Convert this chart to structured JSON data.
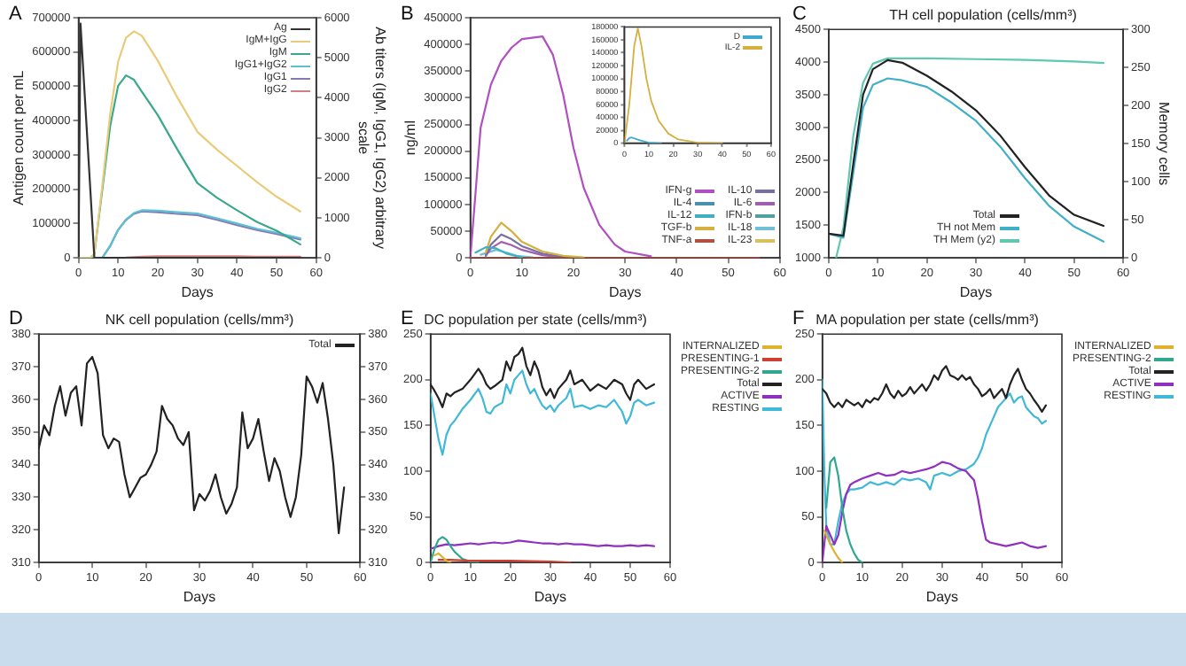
{
  "chart_data": [
    {
      "type": "line",
      "annotations": [
        "A"
      ],
      "xlabel": "Days",
      "ylabel": "Antigen count per mL",
      "y2label": "Ab titers (IgM, IgG1, IgG2) arbitrary scale",
      "xlim": [
        0,
        60
      ],
      "xticks": [
        0,
        10,
        20,
        30,
        40,
        50,
        60
      ],
      "ylim": [
        0,
        700000
      ],
      "yticks": [
        0,
        100000,
        200000,
        300000,
        400000,
        500000,
        600000,
        700000
      ],
      "y2lim": [
        0,
        6000
      ],
      "y2ticks": [
        0,
        1000,
        2000,
        3000,
        4000,
        5000,
        6000
      ],
      "legend": "top right",
      "series": [
        {
          "name": "Ag",
          "color": "#333333",
          "x": [
            0,
            0.5,
            4,
            56
          ],
          "values": [
            0,
            683000,
            0,
            0
          ]
        },
        {
          "name": "IgM+IgG",
          "color": "#e8cc7a",
          "axis": "y2",
          "x": [
            0,
            3,
            4,
            6,
            8,
            10,
            12,
            14,
            16,
            20,
            25,
            30,
            35,
            40,
            45,
            50,
            56
          ],
          "values": [
            0,
            0,
            100,
            1800,
            3600,
            4900,
            5500,
            5660,
            5550,
            4930,
            4000,
            3150,
            2700,
            2300,
            1900,
            1530,
            1160
          ]
        },
        {
          "name": "IgM",
          "color": "#3aa88a",
          "axis": "y2",
          "x": [
            0,
            3,
            4,
            6,
            8,
            10,
            12,
            14,
            16,
            20,
            25,
            30,
            35,
            40,
            45,
            50,
            56
          ],
          "values": [
            0,
            0,
            100,
            1700,
            3300,
            4300,
            4560,
            4450,
            4150,
            3570,
            2700,
            1870,
            1500,
            1190,
            900,
            680,
            340
          ]
        },
        {
          "name": "IgG1+IgG2",
          "color": "#5bc0d0",
          "axis": "y2",
          "x": [
            0,
            3,
            4,
            6,
            8,
            10,
            12,
            14,
            16,
            20,
            25,
            30,
            35,
            40,
            45,
            50,
            56
          ],
          "values": [
            0,
            0,
            0,
            0,
            300,
            700,
            960,
            1120,
            1190,
            1180,
            1140,
            1110,
            990,
            860,
            730,
            630,
            490
          ]
        },
        {
          "name": "IgG1",
          "color": "#8878b8",
          "axis": "y2",
          "x": [
            6,
            8,
            10,
            12,
            14,
            16,
            20,
            25,
            30,
            35,
            40,
            45,
            50,
            56
          ],
          "values": [
            0,
            300,
            700,
            950,
            1100,
            1160,
            1140,
            1100,
            1070,
            950,
            820,
            700,
            600,
            460
          ]
        },
        {
          "name": "IgG2",
          "color": "#d08080",
          "axis": "y2",
          "x": [
            12,
            14,
            16,
            20,
            25,
            30,
            35,
            40,
            45,
            50,
            56
          ],
          "values": [
            10,
            20,
            30,
            40,
            40,
            40,
            40,
            40,
            30,
            30,
            30
          ]
        }
      ]
    },
    {
      "type": "line",
      "annotations": [
        "B"
      ],
      "xlabel": "Days",
      "ylabel": "ng/ml",
      "xlim": [
        0,
        60
      ],
      "xticks": [
        0,
        10,
        20,
        30,
        40,
        50,
        60
      ],
      "ylim": [
        0,
        450000
      ],
      "yticks": [
        0,
        50000,
        100000,
        150000,
        200000,
        250000,
        300000,
        350000,
        400000,
        450000
      ],
      "legend": "bottom right",
      "series": [
        {
          "name": "IFN-g",
          "color": "#b04fc0",
          "x": [
            0,
            1,
            2,
            4,
            6,
            8,
            10,
            14,
            16,
            18,
            20,
            22,
            25,
            28,
            30,
            35
          ],
          "values": [
            0,
            120000,
            244000,
            325000,
            369000,
            394000,
            410000,
            415000,
            381000,
            306000,
            206000,
            131000,
            62000,
            25000,
            12000,
            3000
          ]
        },
        {
          "name": "IL-4",
          "color": "#4a8fb0"
        },
        {
          "name": "IL-12",
          "color": "#40b0c0",
          "x": [
            1,
            3,
            5,
            7,
            10
          ],
          "values": [
            10000,
            20000,
            18000,
            8000,
            1000
          ]
        },
        {
          "name": "TGF-b",
          "color": "#d4b040",
          "x": [
            3,
            4,
            6,
            8,
            10,
            14,
            18,
            22
          ],
          "values": [
            10000,
            40000,
            66000,
            50000,
            30000,
            12000,
            4000,
            1000
          ]
        },
        {
          "name": "TNF-a",
          "color": "#b05040",
          "x": [
            0,
            56
          ],
          "values": [
            0,
            0
          ]
        },
        {
          "name": "IL-10",
          "color": "#7a70a0",
          "x": [
            3,
            4,
            6,
            8,
            10,
            14,
            18
          ],
          "values": [
            5000,
            25000,
            44000,
            35000,
            22000,
            8000,
            2000
          ]
        },
        {
          "name": "IL-6",
          "color": "#a060b0",
          "x": [
            3,
            4,
            6,
            8,
            10,
            14,
            18
          ],
          "values": [
            4000,
            18000,
            30000,
            24000,
            15000,
            5000,
            1000
          ]
        },
        {
          "name": "IFN-b",
          "color": "#50a0a0"
        },
        {
          "name": "IL-18",
          "color": "#70c0d8",
          "x": [
            2,
            5,
            7,
            9,
            12
          ],
          "values": [
            6000,
            15000,
            10000,
            4000,
            1000
          ]
        },
        {
          "name": "IL-23",
          "color": "#d8c060"
        }
      ]
    },
    {
      "type": "line",
      "xlim": [
        0,
        60
      ],
      "xticks": [
        0,
        10,
        20,
        30,
        40,
        50,
        60
      ],
      "ylim": [
        0,
        180000
      ],
      "yticks": [
        0,
        20000,
        40000,
        60000,
        80000,
        100000,
        120000,
        140000,
        160000,
        180000
      ],
      "legend": "top right",
      "series": [
        {
          "name": "D",
          "color": "#40a8d0",
          "x": [
            1,
            2,
            3,
            6,
            10,
            15
          ],
          "values": [
            4000,
            8000,
            9000,
            5000,
            1000,
            0
          ]
        },
        {
          "name": "IL-2",
          "color": "#d4b040",
          "x": [
            0,
            2,
            4,
            5.5,
            7,
            9,
            11,
            14,
            18,
            22,
            30,
            40
          ],
          "values": [
            0,
            60000,
            150000,
            178000,
            150000,
            100000,
            65000,
            35000,
            15000,
            6000,
            1000,
            0
          ]
        }
      ]
    },
    {
      "type": "line",
      "annotations": [
        "C"
      ],
      "title": "TH cell population (cells/mm³)",
      "xlabel": "Days",
      "y2label": "Memory cells",
      "xlim": [
        0,
        60
      ],
      "xticks": [
        0,
        10,
        20,
        30,
        40,
        50,
        60
      ],
      "ylim": [
        1000,
        4500
      ],
      "yticks": [
        1000,
        1500,
        2000,
        2500,
        3000,
        3500,
        4000,
        4500
      ],
      "y2lim": [
        0,
        300
      ],
      "y2ticks": [
        0,
        50,
        100,
        150,
        200,
        250,
        300
      ],
      "legend": "bottom",
      "series": [
        {
          "name": "Total",
          "color": "#222222",
          "x": [
            0,
            3,
            5,
            7,
            9,
            12,
            15,
            20,
            25,
            30,
            35,
            40,
            45,
            50,
            56
          ],
          "values": [
            1370,
            1340,
            2440,
            3500,
            3890,
            4030,
            3990,
            3790,
            3550,
            3260,
            2870,
            2390,
            1950,
            1660,
            1490
          ]
        },
        {
          "name": "TH not Mem",
          "color": "#40b0c8",
          "x": [
            0,
            3,
            5,
            7,
            9,
            12,
            15,
            20,
            25,
            30,
            35,
            40,
            45,
            50,
            56
          ],
          "values": [
            1370,
            1310,
            2300,
            3300,
            3650,
            3750,
            3720,
            3620,
            3380,
            3100,
            2700,
            2220,
            1790,
            1480,
            1250
          ]
        },
        {
          "name": "TH Mem (y2)",
          "color": "#60c8b0",
          "axis": "y2",
          "x": [
            1.5,
            3,
            5,
            7,
            9,
            12,
            20,
            30,
            40,
            50,
            56
          ],
          "values": [
            0,
            40,
            160,
            230,
            255,
            262,
            262,
            261,
            260,
            258,
            256
          ]
        }
      ]
    },
    {
      "type": "line",
      "annotations": [
        "D"
      ],
      "title": "NK cell population (cells/mm³)",
      "xlabel": "Days",
      "xlim": [
        0,
        60
      ],
      "xticks": [
        0,
        10,
        20,
        30,
        40,
        50,
        60
      ],
      "ylim": [
        310,
        380
      ],
      "yticks": [
        310,
        320,
        330,
        340,
        350,
        360,
        370,
        380
      ],
      "y2lim": [
        310,
        380
      ],
      "y2ticks": [
        310,
        320,
        330,
        340,
        350,
        360,
        370,
        380
      ],
      "legend": "top right",
      "series": [
        {
          "name": "Total",
          "color": "#222222",
          "x": [
            0,
            1,
            2,
            3,
            4,
            5,
            6,
            7,
            8,
            9,
            10,
            11,
            12,
            13,
            14,
            15,
            16,
            17,
            18,
            19,
            20,
            21,
            22,
            23,
            24,
            25,
            26,
            27,
            28,
            29,
            30,
            31,
            32,
            33,
            34,
            35,
            36,
            37,
            38,
            39,
            40,
            41,
            42,
            43,
            44,
            45,
            46,
            47,
            48,
            49,
            50,
            51,
            52,
            53,
            54,
            55,
            56,
            57
          ],
          "values": [
            345,
            352,
            349,
            358,
            364,
            355,
            362,
            364,
            352,
            371,
            373,
            368,
            349,
            345,
            348,
            347,
            337,
            330,
            333,
            336,
            337,
            340,
            344,
            358,
            354,
            352,
            348,
            346,
            350,
            326,
            331,
            329,
            332,
            337,
            330,
            325,
            328,
            333,
            356,
            345,
            348,
            354,
            344,
            335,
            342,
            338,
            330,
            324,
            330,
            343,
            367,
            364,
            359,
            365,
            354,
            340,
            319,
            333
          ]
        }
      ]
    },
    {
      "type": "line",
      "annotations": [
        "E"
      ],
      "title": "DC population per state (cells/mm³)",
      "xlabel": "Days",
      "xlim": [
        0,
        60
      ],
      "xticks": [
        0,
        10,
        20,
        30,
        40,
        50,
        60
      ],
      "ylim": [
        0,
        250
      ],
      "yticks": [
        0,
        50,
        100,
        150,
        200,
        250
      ],
      "legend": "right",
      "series": [
        {
          "name": "INTERNALIZED",
          "color": "#e0b030",
          "x": [
            1,
            2,
            3,
            4,
            5
          ],
          "values": [
            8,
            10,
            6,
            2,
            0
          ]
        },
        {
          "name": "PRESENTING-1",
          "color": "#d04030",
          "x": [
            2,
            5,
            10,
            20,
            30,
            35
          ],
          "values": [
            3,
            3,
            2,
            2,
            1,
            0
          ]
        },
        {
          "name": "PRESENTING-2",
          "color": "#30a890",
          "x": [
            0,
            1,
            2,
            3,
            4,
            5,
            6,
            7,
            8,
            10,
            12
          ],
          "values": [
            0,
            15,
            25,
            28,
            25,
            18,
            12,
            8,
            4,
            1,
            0
          ]
        },
        {
          "name": "Total",
          "color": "#222222",
          "x": [
            0,
            1,
            2,
            3,
            4,
            5,
            6,
            8,
            10,
            12,
            13,
            14,
            15,
            16,
            18,
            19,
            20,
            21,
            22,
            23,
            24,
            25,
            26,
            27,
            28,
            29,
            30,
            31,
            32,
            34,
            35,
            36,
            38,
            40,
            42,
            44,
            46,
            48,
            49,
            50,
            51,
            52,
            54,
            56
          ],
          "values": [
            195,
            188,
            180,
            170,
            185,
            182,
            186,
            190,
            200,
            212,
            205,
            195,
            190,
            193,
            200,
            220,
            210,
            225,
            228,
            235,
            215,
            205,
            220,
            210,
            192,
            183,
            190,
            180,
            190,
            200,
            210,
            195,
            200,
            188,
            195,
            190,
            200,
            195,
            185,
            178,
            195,
            200,
            190,
            195
          ]
        },
        {
          "name": "ACTIVE",
          "color": "#9030c0",
          "x": [
            0,
            2,
            4,
            6,
            8,
            10,
            12,
            14,
            16,
            18,
            20,
            22,
            24,
            26,
            28,
            30,
            32,
            34,
            36,
            38,
            40,
            42,
            44,
            46,
            48,
            50,
            52,
            54,
            56
          ],
          "values": [
            15,
            18,
            20,
            19,
            20,
            21,
            20,
            21,
            22,
            21,
            22,
            24,
            23,
            22,
            21,
            21,
            20,
            21,
            20,
            20,
            19,
            18,
            19,
            18,
            18,
            19,
            18,
            19,
            18
          ]
        },
        {
          "name": "RESTING",
          "color": "#40b8d8",
          "x": [
            0,
            1,
            2,
            3,
            4,
            5,
            6,
            8,
            10,
            12,
            13,
            14,
            15,
            16,
            18,
            19,
            20,
            21,
            22,
            23,
            24,
            25,
            26,
            27,
            28,
            29,
            30,
            31,
            32,
            34,
            35,
            36,
            38,
            40,
            42,
            44,
            46,
            48,
            49,
            50,
            51,
            52,
            54,
            56
          ],
          "values": [
            185,
            160,
            135,
            118,
            140,
            150,
            155,
            168,
            178,
            190,
            180,
            165,
            163,
            170,
            175,
            195,
            185,
            200,
            205,
            210,
            195,
            185,
            190,
            180,
            172,
            168,
            172,
            165,
            172,
            180,
            190,
            170,
            172,
            168,
            172,
            170,
            178,
            165,
            152,
            160,
            175,
            178,
            172,
            175
          ]
        }
      ]
    },
    {
      "type": "line",
      "annotations": [
        "F"
      ],
      "title": "MA population per state (cells/mm³)",
      "xlabel": "Days",
      "xlim": [
        0,
        60
      ],
      "xticks": [
        0,
        10,
        20,
        30,
        40,
        50,
        60
      ],
      "ylim": [
        0,
        250
      ],
      "yticks": [
        0,
        50,
        100,
        150,
        200,
        250
      ],
      "legend": "right",
      "series": [
        {
          "name": "INTERNALIZED",
          "color": "#e0b030",
          "x": [
            0.5,
            1,
            2,
            3,
            4,
            5
          ],
          "values": [
            35,
            30,
            20,
            12,
            5,
            0
          ]
        },
        {
          "name": "PRESENTING-2",
          "color": "#30a890",
          "x": [
            1,
            2,
            3,
            4,
            5,
            6,
            7,
            8,
            9,
            10
          ],
          "values": [
            60,
            110,
            115,
            95,
            60,
            35,
            20,
            10,
            3,
            0
          ]
        },
        {
          "name": "Total",
          "color": "#222222",
          "x": [
            0,
            1,
            2,
            3,
            4,
            5,
            6,
            7,
            8,
            9,
            10,
            11,
            12,
            13,
            14,
            15,
            16,
            17,
            18,
            19,
            20,
            21,
            22,
            23,
            24,
            25,
            26,
            27,
            28,
            29,
            30,
            31,
            32,
            33,
            34,
            35,
            36,
            37,
            38,
            39,
            40,
            41,
            42,
            43,
            44,
            45,
            46,
            47,
            48,
            49,
            50,
            51,
            52,
            53,
            54,
            55,
            56
          ],
          "values": [
            190,
            185,
            175,
            170,
            175,
            170,
            178,
            175,
            172,
            175,
            170,
            178,
            175,
            180,
            178,
            185,
            195,
            185,
            180,
            188,
            182,
            185,
            192,
            185,
            190,
            195,
            188,
            195,
            205,
            200,
            210,
            215,
            205,
            203,
            200,
            205,
            200,
            203,
            195,
            190,
            182,
            185,
            190,
            180,
            185,
            190,
            180,
            195,
            205,
            212,
            200,
            190,
            185,
            178,
            172,
            165,
            172
          ]
        },
        {
          "name": "ACTIVE",
          "color": "#9030c0",
          "x": [
            0,
            1,
            2,
            3,
            4,
            5,
            6,
            7,
            8,
            10,
            12,
            14,
            16,
            18,
            20,
            22,
            24,
            26,
            28,
            30,
            32,
            34,
            36,
            37,
            38,
            39,
            40,
            41,
            42,
            44,
            46,
            48,
            50,
            52,
            54,
            56
          ],
          "values": [
            0,
            40,
            30,
            20,
            30,
            55,
            75,
            85,
            88,
            92,
            95,
            98,
            95,
            96,
            100,
            98,
            100,
            102,
            105,
            110,
            108,
            103,
            100,
            95,
            90,
            70,
            45,
            25,
            22,
            20,
            18,
            20,
            22,
            18,
            16,
            18
          ]
        },
        {
          "name": "RESTING",
          "color": "#40b8d8",
          "x": [
            0,
            0.5,
            1,
            2,
            3,
            4,
            5,
            6,
            7,
            8,
            10,
            12,
            14,
            16,
            18,
            20,
            22,
            24,
            26,
            27,
            28,
            30,
            32,
            34,
            36,
            38,
            39,
            40,
            41,
            42,
            43,
            44,
            45,
            46,
            47,
            48,
            49,
            50,
            51,
            52,
            53,
            54,
            55,
            56
          ],
          "values": [
            200,
            100,
            40,
            20,
            20,
            45,
            65,
            75,
            80,
            80,
            82,
            88,
            85,
            88,
            85,
            92,
            90,
            92,
            88,
            80,
            95,
            98,
            95,
            100,
            102,
            108,
            115,
            125,
            140,
            150,
            160,
            170,
            175,
            180,
            185,
            175,
            180,
            182,
            170,
            165,
            160,
            158,
            152,
            155
          ]
        }
      ]
    }
  ]
}
